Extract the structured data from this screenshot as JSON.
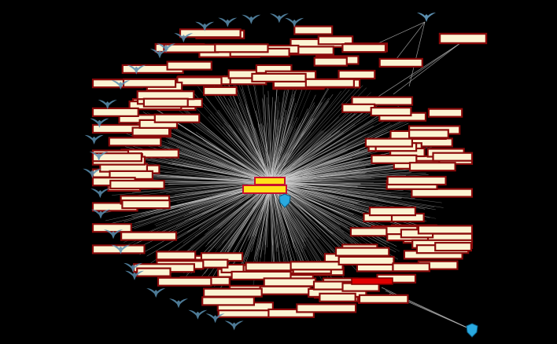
{
  "graph": {
    "background": "#000000",
    "node_fill": "#fbf3d2",
    "node_border": "#8a0b0b",
    "hub_fill": "#ffe21a",
    "hub_border": "#c8102e",
    "edge_color": "#d8d8d8",
    "shield_color": "#29a9e0",
    "bird_color": "#5b8fb0",
    "icons": [
      "hub-shield-icon",
      "shield-icon",
      "bird-icon"
    ],
    "node_count": 150,
    "bird_count": 26,
    "node_labels": []
  }
}
